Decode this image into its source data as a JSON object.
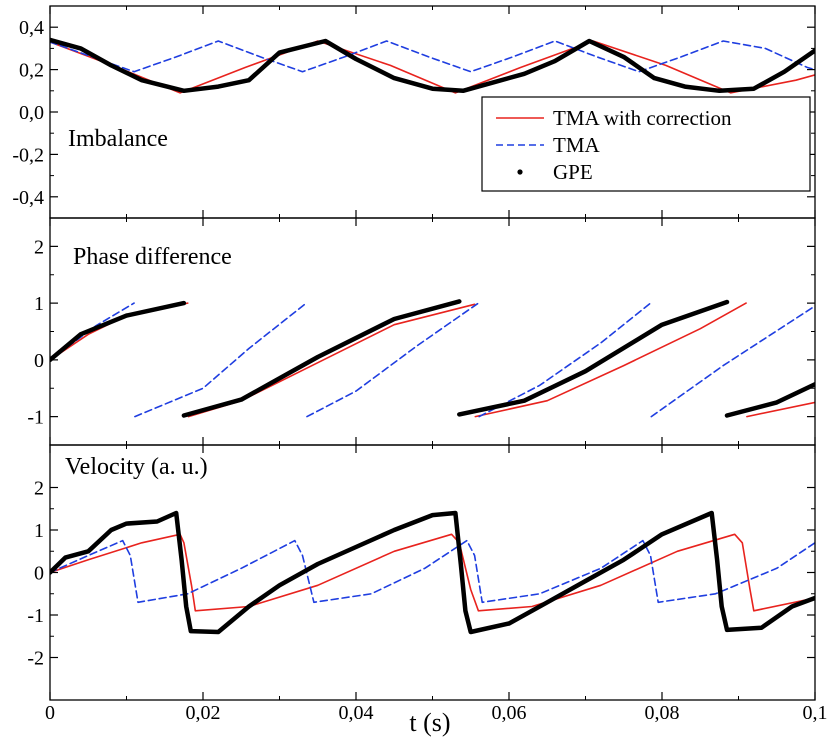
{
  "chart_data": {
    "type": "line",
    "xlabel": "t (s)",
    "xlim": [
      0,
      0.1
    ],
    "xticks": [
      0,
      0.02,
      0.04,
      0.06,
      0.08,
      0.1
    ],
    "xtick_labels": [
      "0",
      "0,02",
      "0,04",
      "0,06",
      "0,08",
      "0,1"
    ],
    "legend": {
      "location": "top-right of top panel",
      "entries": [
        {
          "label": "TMA with correction",
          "style": "solid",
          "color": "#e8231e"
        },
        {
          "label": "TMA",
          "style": "dashed",
          "color": "#1f3ee0"
        },
        {
          "label": "GPE",
          "style": "dots",
          "color": "#000000"
        }
      ]
    },
    "panels": [
      {
        "id": "imbalance",
        "label": "Imbalance",
        "ylim": [
          -0.5,
          0.5
        ],
        "yticks": [
          -0.4,
          -0.2,
          0,
          0.2,
          0.4
        ],
        "ytick_labels": [
          "-0,4",
          "-0,2",
          "0,0",
          "0,2",
          "0,4"
        ],
        "series": [
          {
            "name": "TMA with correction",
            "x": [
              0,
              0.0085,
              0.017,
              0.0255,
              0.035,
              0.0445,
              0.053,
              0.0615,
              0.071,
              0.0805,
              0.089,
              0.0975,
              0.1
            ],
            "y": [
              0.33,
              0.215,
              0.09,
              0.21,
              0.335,
              0.22,
              0.09,
              0.21,
              0.335,
              0.22,
              0.09,
              0.15,
              0.175
            ]
          },
          {
            "name": "TMA",
            "x": [
              0,
              0.0055,
              0.011,
              0.0165,
              0.022,
              0.0275,
              0.033,
              0.0385,
              0.044,
              0.0495,
              0.055,
              0.0605,
              0.066,
              0.0715,
              0.077,
              0.0825,
              0.088,
              0.0935,
              0.099,
              0.1
            ],
            "y": [
              0.33,
              0.26,
              0.19,
              0.26,
              0.335,
              0.26,
              0.19,
              0.26,
              0.335,
              0.26,
              0.19,
              0.26,
              0.335,
              0.26,
              0.19,
              0.26,
              0.335,
              0.3,
              0.21,
              0.2
            ]
          },
          {
            "name": "GPE",
            "x": [
              0,
              0.004,
              0.008,
              0.012,
              0.0175,
              0.022,
              0.026,
              0.03,
              0.036,
              0.04,
              0.045,
              0.05,
              0.054,
              0.058,
              0.062,
              0.066,
              0.0705,
              0.075,
              0.079,
              0.083,
              0.0875,
              0.092,
              0.096,
              0.1
            ],
            "y": [
              0.34,
              0.3,
              0.22,
              0.15,
              0.1,
              0.12,
              0.15,
              0.28,
              0.335,
              0.25,
              0.16,
              0.11,
              0.1,
              0.14,
              0.18,
              0.24,
              0.335,
              0.26,
              0.16,
              0.12,
              0.1,
              0.11,
              0.19,
              0.29
            ]
          }
        ]
      },
      {
        "id": "phase",
        "label": "Phase difference",
        "ylim": [
          -1.5,
          2.5
        ],
        "yticks": [
          -1,
          0,
          1,
          2
        ],
        "ytick_labels": [
          "-1",
          "0",
          "1",
          "2"
        ],
        "series": [
          {
            "name": "TMA with correction",
            "segments": [
              {
                "x": [
                  0,
                  0.005,
                  0.01,
                  0.018
                ],
                "y": [
                  0,
                  0.45,
                  0.78,
                  1.0
                ]
              },
              {
                "x": [
                  0.0181,
                  0.025,
                  0.035,
                  0.045,
                  0.0555
                ],
                "y": [
                  -1.0,
                  -0.72,
                  -0.05,
                  0.62,
                  0.98
                ]
              },
              {
                "x": [
                  0.0556,
                  0.065,
                  0.075,
                  0.085,
                  0.091
                ],
                "y": [
                  -1.0,
                  -0.72,
                  -0.1,
                  0.55,
                  1.0
                ]
              },
              {
                "x": [
                  0.0911,
                  0.1
                ],
                "y": [
                  -1.0,
                  -0.75
                ]
              }
            ]
          },
          {
            "name": "TMA",
            "segments": [
              {
                "x": [
                  0,
                  0.006,
                  0.011
                ],
                "y": [
                  0,
                  0.6,
                  1.0
                ]
              },
              {
                "x": [
                  0.0111,
                  0.02,
                  0.026,
                  0.0335
                ],
                "y": [
                  -1.0,
                  -0.5,
                  0.2,
                  1.0
                ]
              },
              {
                "x": [
                  0.0336,
                  0.04,
                  0.048,
                  0.056
                ],
                "y": [
                  -1.0,
                  -0.55,
                  0.25,
                  1.0
                ]
              },
              {
                "x": [
                  0.0561,
                  0.064,
                  0.072,
                  0.0785
                ],
                "y": [
                  -1.0,
                  -0.45,
                  0.3,
                  1.0
                ]
              },
              {
                "x": [
                  0.0786,
                  0.088,
                  0.1
                ],
                "y": [
                  -1.0,
                  -0.1,
                  0.95
                ]
              }
            ]
          },
          {
            "name": "GPE",
            "segments": [
              {
                "x": [
                  0,
                  0.004,
                  0.01,
                  0.0175
                ],
                "y": [
                  0,
                  0.45,
                  0.78,
                  1.0
                ]
              },
              {
                "x": [
                  0.0175,
                  0.025,
                  0.035,
                  0.045,
                  0.0535
                ],
                "y": [
                  -0.98,
                  -0.7,
                  0.05,
                  0.72,
                  1.03
                ]
              },
              {
                "x": [
                  0.0535,
                  0.062,
                  0.07,
                  0.08,
                  0.0885
                ],
                "y": [
                  -0.96,
                  -0.72,
                  -0.2,
                  0.62,
                  1.02
                ]
              },
              {
                "x": [
                  0.0885,
                  0.095,
                  0.1
                ],
                "y": [
                  -0.98,
                  -0.75,
                  -0.43
                ]
              }
            ]
          }
        ]
      },
      {
        "id": "velocity",
        "label": "Velocity (a. u.)",
        "ylim": [
          -3,
          3
        ],
        "yticks": [
          -2,
          -1,
          0,
          1,
          2
        ],
        "ytick_labels": [
          "-2",
          "-1",
          "0",
          "1",
          "2"
        ],
        "series": [
          {
            "name": "TMA with correction",
            "x": [
              0,
              0.005,
              0.012,
              0.017,
              0.0175,
              0.0185,
              0.019,
              0.026,
              0.035,
              0.045,
              0.0525,
              0.0535,
              0.055,
              0.056,
              0.063,
              0.072,
              0.082,
              0.0895,
              0.0905,
              0.0915,
              0.092,
              0.1
            ],
            "y": [
              0,
              0.3,
              0.7,
              0.9,
              0.7,
              -0.3,
              -0.9,
              -0.8,
              -0.3,
              0.5,
              0.9,
              0.7,
              -0.4,
              -0.9,
              -0.8,
              -0.3,
              0.5,
              0.9,
              0.7,
              -0.4,
              -0.9,
              -0.6
            ]
          },
          {
            "name": "TMA",
            "x": [
              0,
              0.005,
              0.0095,
              0.0105,
              0.0115,
              0.018,
              0.025,
              0.032,
              0.033,
              0.0345,
              0.042,
              0.049,
              0.0545,
              0.0555,
              0.0565,
              0.064,
              0.072,
              0.0775,
              0.0785,
              0.0795,
              0.087,
              0.095,
              0.1
            ],
            "y": [
              0,
              0.4,
              0.75,
              0.4,
              -0.7,
              -0.5,
              0.1,
              0.75,
              0.4,
              -0.7,
              -0.5,
              0.1,
              0.75,
              0.4,
              -0.7,
              -0.5,
              0.1,
              0.75,
              0.4,
              -0.7,
              -0.5,
              0.1,
              0.7
            ]
          },
          {
            "name": "GPE",
            "x": [
              0,
              0.002,
              0.005,
              0.008,
              0.01,
              0.014,
              0.0165,
              0.0172,
              0.0178,
              0.0184,
              0.022,
              0.026,
              0.03,
              0.035,
              0.04,
              0.045,
              0.05,
              0.053,
              0.0537,
              0.0543,
              0.055,
              0.06,
              0.065,
              0.07,
              0.075,
              0.08,
              0.0865,
              0.0872,
              0.0878,
              0.0885,
              0.093,
              0.097,
              0.1
            ],
            "y": [
              0,
              0.35,
              0.5,
              1.0,
              1.15,
              1.2,
              1.4,
              0.3,
              -0.8,
              -1.38,
              -1.4,
              -0.8,
              -0.3,
              0.2,
              0.6,
              1.0,
              1.35,
              1.4,
              0.2,
              -0.9,
              -1.4,
              -1.2,
              -0.7,
              -0.2,
              0.3,
              0.9,
              1.4,
              0.3,
              -0.8,
              -1.35,
              -1.3,
              -0.8,
              -0.6
            ]
          }
        ]
      }
    ]
  }
}
